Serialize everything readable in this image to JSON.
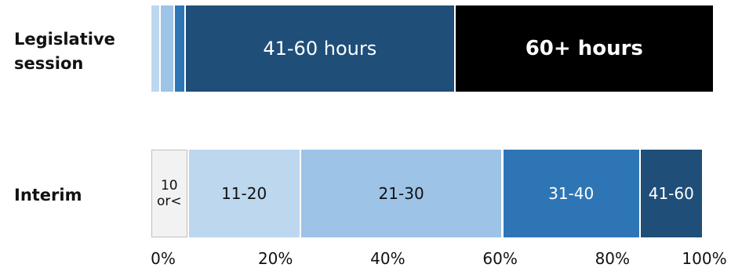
{
  "chart_data": {
    "type": "bar",
    "orientation": "horizontal",
    "stacked": true,
    "title": "",
    "xlabel": "",
    "ylabel": "",
    "xlim": [
      0,
      100
    ],
    "x_unit": "%",
    "grid": false,
    "legend": "none",
    "x_ticks": [
      "0%",
      "20%",
      "40%",
      "60%",
      "80%",
      "100%"
    ],
    "categories": [
      "Legislative session",
      "Interim"
    ],
    "rows": [
      {
        "category": "Legislative session",
        "label_lines": [
          "Legislative",
          "session"
        ],
        "segments": [
          {
            "bin": "10 or <",
            "label": "",
            "value": 1.5,
            "color": "#bdd7ee"
          },
          {
            "bin": "11-20",
            "label": "",
            "value": 2.5,
            "color": "#9dc3e6"
          },
          {
            "bin": "21-30",
            "label": "",
            "value": 2.0,
            "color": "#2e75b6"
          },
          {
            "bin": "41-60 hours",
            "label": "41-60 hours",
            "value": 48.0,
            "color": "#1f4e79",
            "text_color": "#ffffff",
            "bold": false
          },
          {
            "bin": "60+ hours",
            "label": "60+ hours",
            "value": 46.0,
            "color": "#000000",
            "text_color": "#ffffff",
            "bold": true
          }
        ]
      },
      {
        "category": "Interim",
        "label_lines": [
          "Interim"
        ],
        "segments": [
          {
            "bin": "10 or <",
            "label_lines": [
              "10",
              "or<"
            ],
            "value": 6.5,
            "color": "#f2f2f2",
            "text_color": "#111111",
            "border": "#bfbfbf"
          },
          {
            "bin": "11-20",
            "label": "11-20",
            "value": 20.0,
            "color": "#bdd7ee",
            "text_color": "#111111"
          },
          {
            "bin": "21-30",
            "label": "21-30",
            "value": 36.0,
            "color": "#9dc3e6",
            "text_color": "#111111"
          },
          {
            "bin": "31-40",
            "label": "31-40",
            "value": 24.5,
            "color": "#2e75b6",
            "text_color": "#ffffff"
          },
          {
            "bin": "41-60",
            "label": "41-60",
            "value": 11.0,
            "color": "#1f4e79",
            "text_color": "#ffffff"
          }
        ]
      }
    ]
  }
}
